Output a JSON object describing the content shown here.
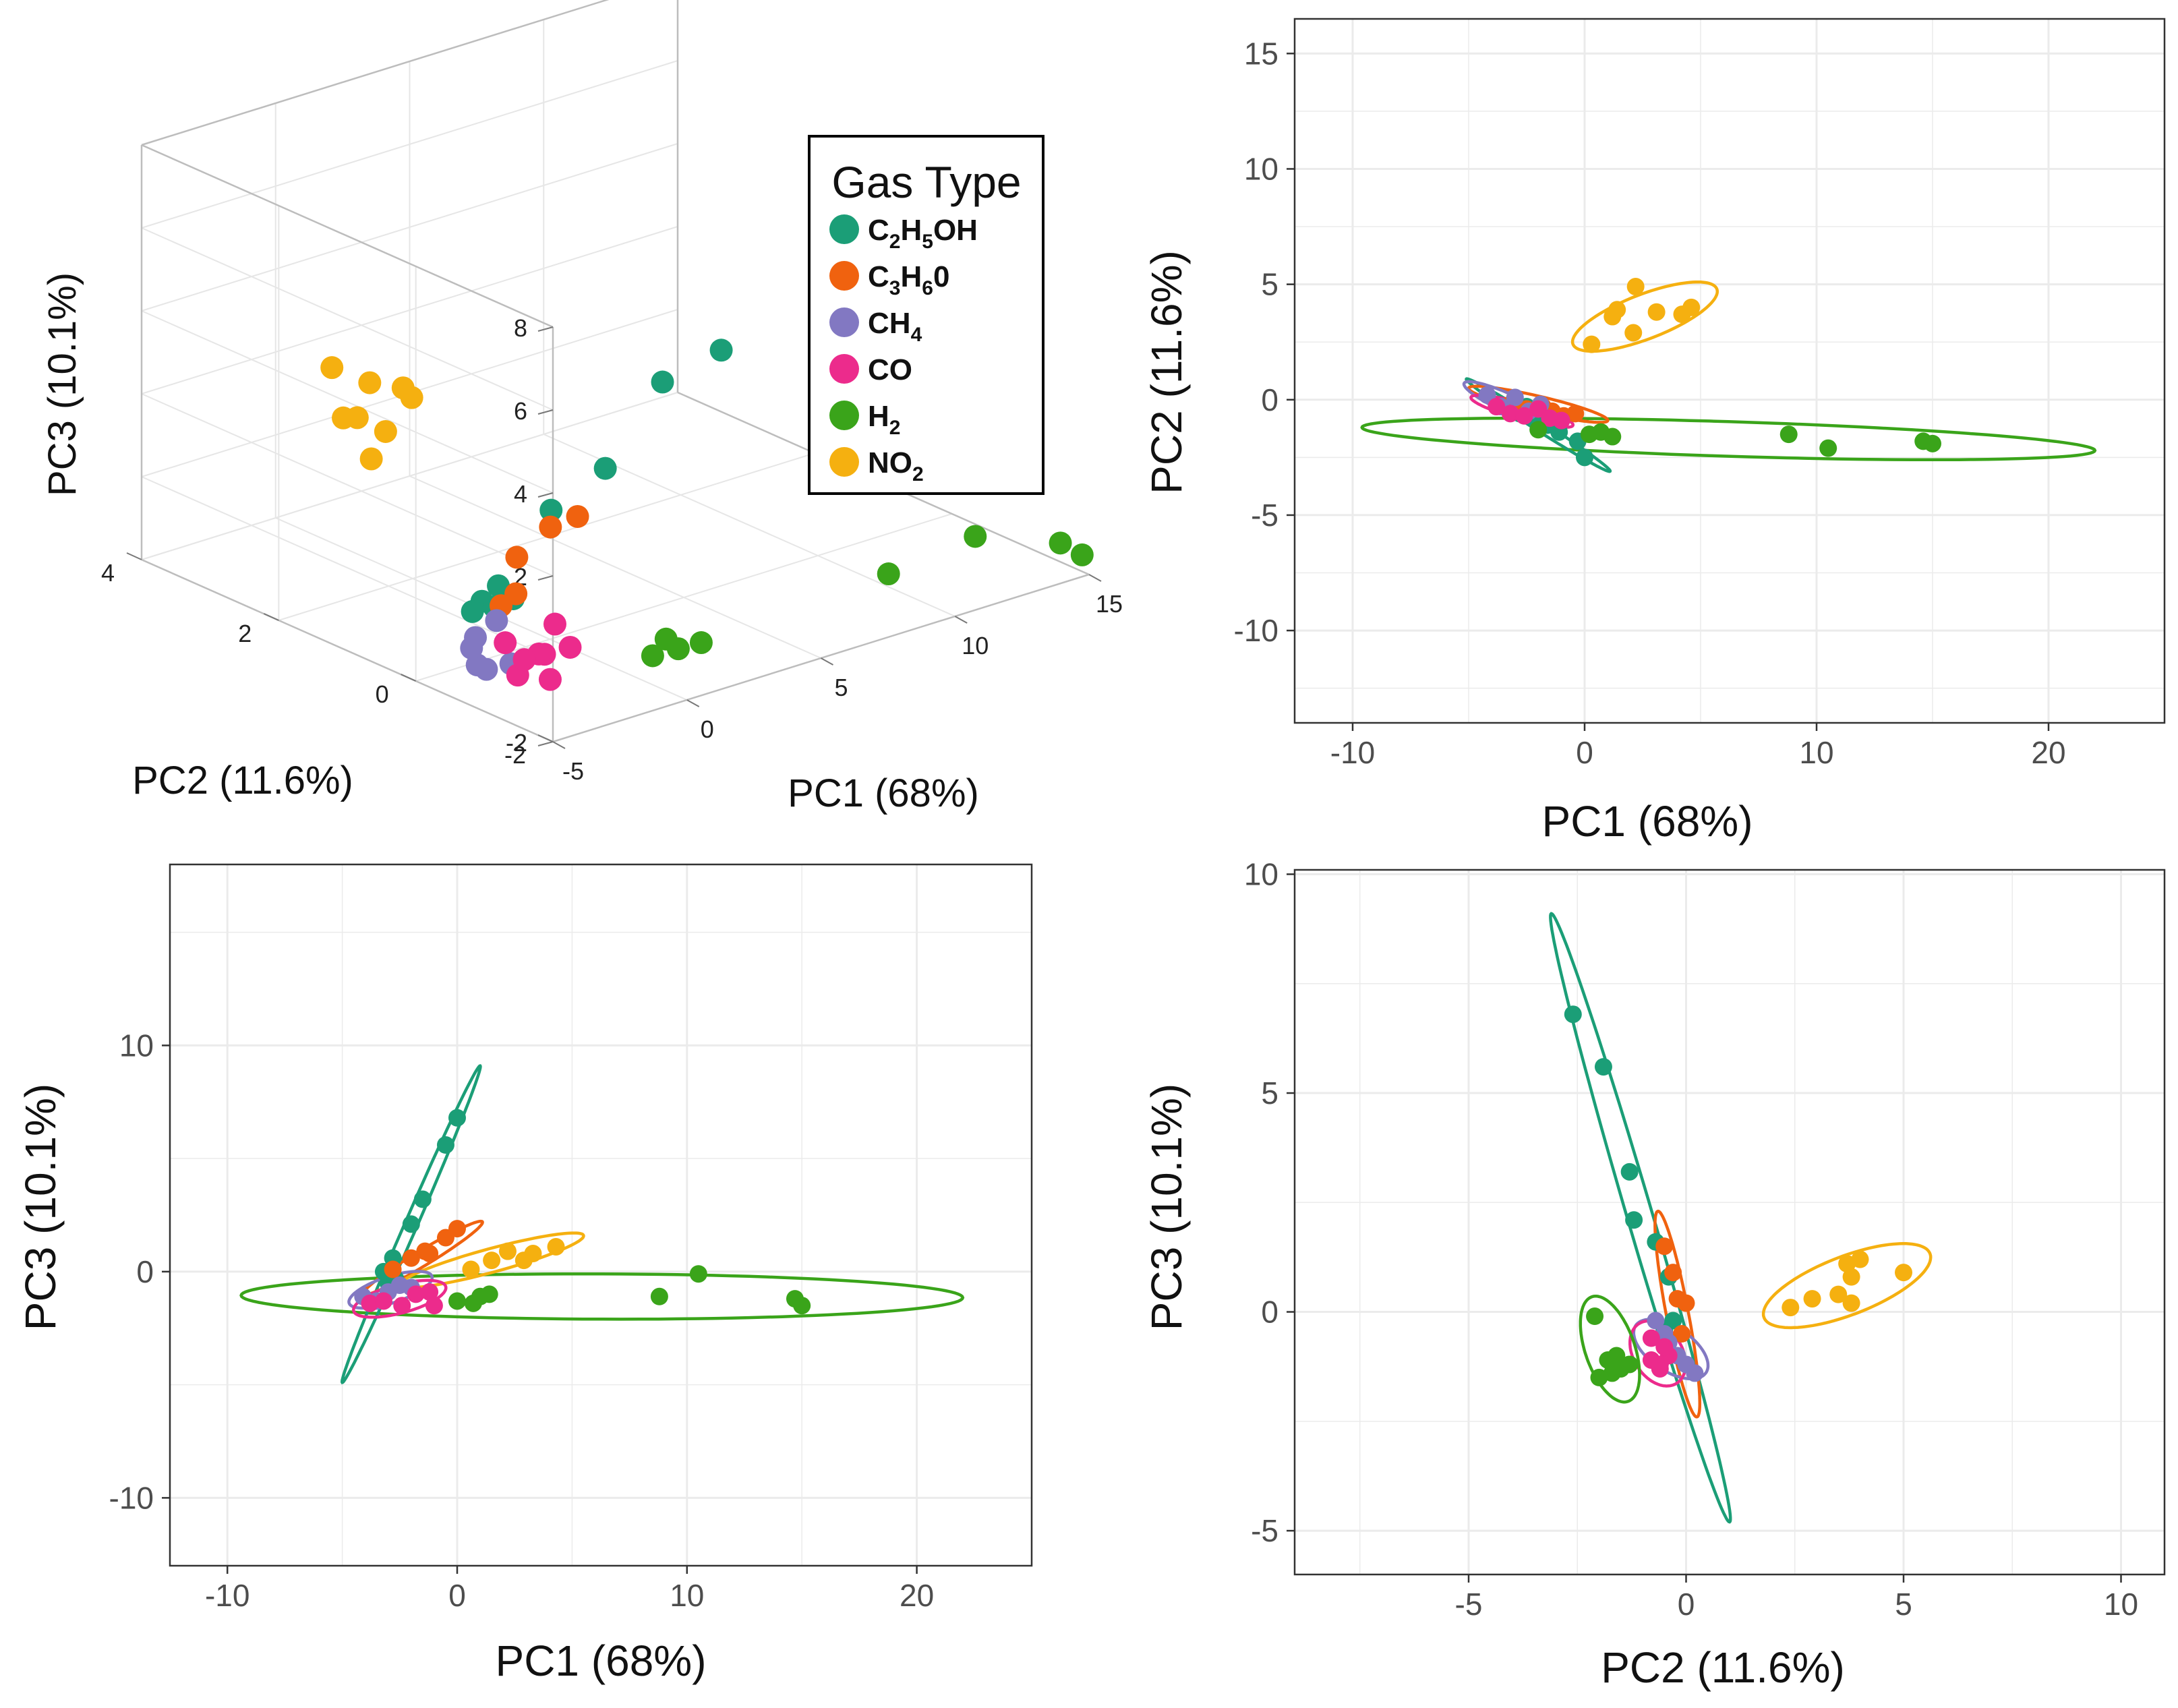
{
  "colors": {
    "C2H5OH": "#1b9e77",
    "C3H6O": "#f0620f",
    "CH4": "#8278c2",
    "CO": "#ec2b8c",
    "H2": "#3aa41a",
    "NO2": "#f5b010",
    "grid": "#ebebeb",
    "axis_text": "#4d4d4d",
    "pane_grid": "#e6e6e6",
    "pane_edge": "#bdbdbd"
  },
  "legend": {
    "title": "Gas Type",
    "items": [
      {
        "key": "C2H5OH",
        "parts": [
          [
            "C",
            ""
          ],
          [
            "2",
            "sub"
          ],
          [
            "H",
            ""
          ],
          [
            "5",
            "sub"
          ],
          [
            "OH",
            ""
          ]
        ]
      },
      {
        "key": "C3H6O",
        "parts": [
          [
            "C",
            ""
          ],
          [
            "3",
            "sub"
          ],
          [
            "H",
            ""
          ],
          [
            "6",
            "sub"
          ],
          [
            "0",
            ""
          ]
        ]
      },
      {
        "key": "CH4",
        "parts": [
          [
            "CH",
            ""
          ],
          [
            "4",
            "sub"
          ]
        ]
      },
      {
        "key": "CO",
        "parts": [
          [
            "CO",
            ""
          ]
        ]
      },
      {
        "key": "H2",
        "parts": [
          [
            "H",
            ""
          ],
          [
            "2",
            "sub"
          ]
        ]
      },
      {
        "key": "NO2",
        "parts": [
          [
            "NO",
            ""
          ],
          [
            "2",
            "sub"
          ]
        ]
      }
    ]
  },
  "chart_data": [
    {
      "type": "scatter",
      "projection": "3d",
      "title": "",
      "xlabel": "PC1 (68%)",
      "ylabel": "PC2 (11.6%)",
      "zlabel": "PC3 (10.1%)",
      "xticks": [
        "-5",
        "0",
        "5",
        "10",
        "15"
      ],
      "yticks": [
        "-2",
        "0",
        "2",
        "4"
      ],
      "zticks": [
        "-2",
        "0",
        "2",
        "4",
        "6",
        "8"
      ],
      "xlim": [
        -5,
        15
      ],
      "ylim": [
        -2,
        4
      ],
      "zlim": [
        -2,
        8
      ],
      "series": [
        {
          "name": "C2H5OH",
          "points": [
            [
              0,
              -2.5,
              6.8
            ],
            [
              -0.4,
              -1.8,
              5.6
            ],
            [
              -1,
              -1.2,
              3.2
            ],
            [
              -2,
              -0.8,
              2.1
            ],
            [
              -3.2,
              -0.5,
              0.3
            ],
            [
              -3.3,
              -0.3,
              -0.2
            ],
            [
              -3.4,
              -0.2,
              -0.5
            ],
            [
              -2.9,
              -0.6,
              0.0
            ],
            [
              -3.1,
              -0.4,
              -0.3
            ]
          ]
        },
        {
          "name": "C3H6O",
          "points": [
            [
              -0.5,
              -0.6,
              1.5
            ],
            [
              -1,
              -0.4,
              1.2
            ],
            [
              -2,
              -0.3,
              0.6
            ],
            [
              -2.8,
              -0.6,
              0.1
            ],
            [
              -3.1,
              -0.5,
              -0.2
            ]
          ]
        },
        {
          "name": "CH4",
          "points": [
            [
              -3.8,
              -0.4,
              -0.9
            ],
            [
              -4.5,
              -0.7,
              -1.2
            ],
            [
              -3.9,
              -0.6,
              -1.5
            ],
            [
              -2.5,
              -0.2,
              -0.9
            ],
            [
              -4.2,
              -0.5,
              -1.0
            ],
            [
              -3.5,
              -0.8,
              -1.3
            ]
          ]
        },
        {
          "name": "CO",
          "points": [
            [
              -3.5,
              -0.9,
              -1.5
            ],
            [
              -3.2,
              -0.6,
              -1.0
            ],
            [
              -2.8,
              -1.1,
              -1.6
            ],
            [
              -2.5,
              -0.9,
              -1.2
            ],
            [
              -2.2,
              -0.7,
              -1.4
            ],
            [
              -1.8,
              -1.0,
              -1.1
            ],
            [
              -1.6,
              -0.7,
              -0.8
            ],
            [
              -3.0,
              -0.8,
              -1.3
            ]
          ]
        },
        {
          "name": "H2",
          "points": [
            [
              0,
              -1.5,
              -1.3
            ],
            [
              0.7,
              -1.6,
              -1.2
            ],
            [
              1.3,
              -1.7,
              -1.1
            ],
            [
              0.5,
              -1.5,
              -1.0
            ],
            [
              8.8,
              -1.5,
              -1.1
            ],
            [
              10.5,
              -2.1,
              -0.1
            ],
            [
              14.7,
              -1.7,
              -1.4
            ],
            [
              15,
              -1.9,
              -1.6
            ]
          ]
        },
        {
          "name": "NO2",
          "points": [
            [
              -0.5,
              2.2,
              1.5
            ],
            [
              0.5,
              2.8,
              0.2
            ],
            [
              1.5,
              3.6,
              0.4
            ],
            [
              2.1,
              4.0,
              1.2
            ],
            [
              3.0,
              3.8,
              0.8
            ],
            [
              3.8,
              3.5,
              0.5
            ],
            [
              4.5,
              3.9,
              0.3
            ],
            [
              1.0,
              3.2,
              0.8
            ]
          ]
        }
      ]
    },
    {
      "type": "scatter",
      "title": "",
      "xlabel": "PC1 (68%)",
      "ylabel": "PC2 (11.6%)",
      "xlim": [
        -12.5,
        25
      ],
      "ylim": [
        -14,
        16.5
      ],
      "xticks": [
        -10,
        0,
        10,
        20
      ],
      "yticks": [
        -10,
        -5,
        0,
        5,
        10,
        15
      ],
      "ellipses": [
        {
          "name": "C2H5OH",
          "points": [
            [
              -5,
              0.9
            ],
            [
              -3.5,
              0.3
            ],
            [
              -2,
              -0.5
            ],
            [
              -0.5,
              -1.5
            ],
            [
              0.5,
              -2.2
            ],
            [
              1,
              -3.1
            ]
          ]
        },
        {
          "name": "C3H6O",
          "points": [
            [
              -4.5,
              0.6
            ],
            [
              -3,
              0.2
            ],
            [
              -1.5,
              -0.2
            ],
            [
              0,
              -0.4
            ],
            [
              1,
              -0.8
            ]
          ]
        },
        {
          "name": "CH4",
          "points": [
            [
              -5,
              0.8
            ],
            [
              -3.5,
              0.4
            ],
            [
              -2,
              -0.2
            ],
            [
              -1,
              -0.6
            ]
          ]
        },
        {
          "name": "CO",
          "points": [
            [
              -5,
              0.3
            ],
            [
              -3.5,
              -0.2
            ],
            [
              -2,
              -0.7
            ],
            [
              -0.5,
              -1.1
            ]
          ]
        },
        {
          "name": "H2",
          "points": [
            [
              -9.5,
              -1.2
            ],
            [
              0,
              -1.4
            ],
            [
              10,
              -1.7
            ],
            [
              22,
              -2.2
            ]
          ]
        },
        {
          "name": "NO2",
          "points": [
            [
              0,
              2.5
            ],
            [
              1.5,
              3.8
            ],
            [
              3.2,
              4.5
            ],
            [
              6,
              4.8
            ],
            [
              1,
              2.1
            ]
          ]
        }
      ],
      "series": [
        {
          "name": "C2H5OH",
          "points": [
            [
              -2.8,
              -0.6
            ],
            [
              -2.2,
              -0.8
            ],
            [
              -1.6,
              -1.1
            ],
            [
              -1.1,
              -1.4
            ],
            [
              -0.3,
              -1.8
            ],
            [
              0,
              -2.5
            ],
            [
              -3.2,
              -0.4
            ],
            [
              -2.5,
              -0.3
            ]
          ]
        },
        {
          "name": "C3H6O",
          "points": [
            [
              -3.2,
              -0.2
            ],
            [
              -2.5,
              -0.4
            ],
            [
              -1.8,
              -0.3
            ],
            [
              -1.4,
              -0.5
            ],
            [
              -0.9,
              -0.7
            ],
            [
              -0.4,
              -0.6
            ]
          ]
        },
        {
          "name": "CH4",
          "points": [
            [
              -4.2,
              0.2
            ],
            [
              -3.6,
              -0.3
            ],
            [
              -3,
              0.1
            ],
            [
              -2.4,
              -0.5
            ],
            [
              -1.9,
              -0.2
            ]
          ]
        },
        {
          "name": "CO",
          "points": [
            [
              -3.8,
              -0.3
            ],
            [
              -3.2,
              -0.6
            ],
            [
              -2.6,
              -0.7
            ],
            [
              -2,
              -0.4
            ],
            [
              -1.5,
              -0.8
            ],
            [
              -1,
              -0.9
            ]
          ]
        },
        {
          "name": "H2",
          "points": [
            [
              -2,
              -1.3
            ],
            [
              0.2,
              -1.5
            ],
            [
              0.7,
              -1.4
            ],
            [
              1.2,
              -1.6
            ],
            [
              8.8,
              -1.5
            ],
            [
              10.5,
              -2.1
            ],
            [
              14.6,
              -1.8
            ],
            [
              15,
              -1.9
            ]
          ]
        },
        {
          "name": "NO2",
          "points": [
            [
              0.3,
              2.4
            ],
            [
              1.2,
              3.6
            ],
            [
              1.4,
              3.9
            ],
            [
              2.1,
              2.9
            ],
            [
              2.2,
              4.9
            ],
            [
              3.1,
              3.8
            ],
            [
              4.2,
              3.7
            ],
            [
              4.6,
              4.0
            ]
          ]
        }
      ]
    },
    {
      "type": "scatter",
      "title": "",
      "xlabel": "PC1 (68%)",
      "ylabel": "PC3 (10.1%)",
      "xlim": [
        -12.5,
        25
      ],
      "ylim": [
        -13,
        18
      ],
      "xticks": [
        -10,
        0,
        10,
        20
      ],
      "yticks": [
        -10,
        0,
        10
      ],
      "series": [
        {
          "name": "C2H5OH",
          "points": [
            [
              -3.2,
              0.0
            ],
            [
              -2.8,
              0.6
            ],
            [
              -2,
              2.1
            ],
            [
              -1.5,
              3.2
            ],
            [
              -0.5,
              5.6
            ],
            [
              0,
              6.8
            ],
            [
              -3,
              -0.5
            ],
            [
              -2.7,
              -0.3
            ]
          ]
        },
        {
          "name": "C3H6O",
          "points": [
            [
              -2.8,
              0.1
            ],
            [
              -2,
              0.6
            ],
            [
              -1.4,
              0.9
            ],
            [
              -0.5,
              1.5
            ],
            [
              0,
              1.9
            ],
            [
              -1.2,
              0.8
            ]
          ]
        },
        {
          "name": "CH4",
          "points": [
            [
              -4.1,
              -1.1
            ],
            [
              -3.5,
              -1.3
            ],
            [
              -3,
              -0.9
            ],
            [
              -2.5,
              -0.6
            ],
            [
              -2,
              -0.7
            ]
          ]
        },
        {
          "name": "CO",
          "points": [
            [
              -3.8,
              -1.4
            ],
            [
              -3.2,
              -1.3
            ],
            [
              -2.4,
              -1.5
            ],
            [
              -1.8,
              -1.0
            ],
            [
              -1.2,
              -0.9
            ],
            [
              -1,
              -1.5
            ]
          ]
        },
        {
          "name": "H2",
          "points": [
            [
              0,
              -1.3
            ],
            [
              0.7,
              -1.4
            ],
            [
              1,
              -1.1
            ],
            [
              1.4,
              -1.0
            ],
            [
              8.8,
              -1.1
            ],
            [
              10.5,
              -0.1
            ],
            [
              14.7,
              -1.2
            ],
            [
              15,
              -1.5
            ]
          ]
        },
        {
          "name": "NO2",
          "points": [
            [
              0.6,
              0.1
            ],
            [
              1.5,
              0.5
            ],
            [
              2.2,
              0.9
            ],
            [
              3.3,
              0.8
            ],
            [
              4.3,
              1.1
            ],
            [
              2.9,
              0.5
            ]
          ]
        }
      ]
    },
    {
      "type": "scatter",
      "title": "",
      "xlabel": "PC2 (11.6%)",
      "ylabel": "PC3 (10.1%)",
      "xlim": [
        -9,
        11
      ],
      "ylim": [
        -6,
        10.1
      ],
      "xticks": [
        -5,
        0,
        5,
        10
      ],
      "yticks": [
        -5,
        0,
        5,
        10
      ],
      "series": [
        {
          "name": "C2H5OH",
          "points": [
            [
              -2.6,
              6.8
            ],
            [
              -1.9,
              5.6
            ],
            [
              -1.3,
              3.2
            ],
            [
              -1.2,
              2.1
            ],
            [
              -0.7,
              1.6
            ],
            [
              -0.4,
              0.8
            ],
            [
              -0.3,
              -0.2
            ],
            [
              -0.5,
              -0.4
            ]
          ]
        },
        {
          "name": "C3H6O",
          "points": [
            [
              -0.5,
              1.5
            ],
            [
              -0.3,
              0.9
            ],
            [
              -0.2,
              0.3
            ],
            [
              0,
              0.2
            ],
            [
              -0.1,
              -0.5
            ]
          ]
        },
        {
          "name": "CH4",
          "points": [
            [
              -0.7,
              -0.2
            ],
            [
              -0.5,
              -0.5
            ],
            [
              -0.2,
              -1.0
            ],
            [
              0,
              -1.2
            ],
            [
              0.2,
              -1.4
            ],
            [
              -0.4,
              -0.7
            ]
          ]
        },
        {
          "name": "CO",
          "points": [
            [
              -0.8,
              -1.1
            ],
            [
              -0.6,
              -1.3
            ],
            [
              -0.4,
              -1.0
            ],
            [
              -0.8,
              -0.6
            ],
            [
              -0.5,
              -0.8
            ],
            [
              -0.6,
              -1.2
            ]
          ]
        },
        {
          "name": "H2",
          "points": [
            [
              -2.1,
              -0.1
            ],
            [
              -1.8,
              -1.1
            ],
            [
              -1.6,
              -1.0
            ],
            [
              -1.5,
              -1.3
            ],
            [
              -1.3,
              -1.2
            ],
            [
              -2,
              -1.5
            ],
            [
              -1.7,
              -1.4
            ]
          ]
        },
        {
          "name": "NO2",
          "points": [
            [
              2.4,
              0.1
            ],
            [
              2.9,
              0.3
            ],
            [
              3.5,
              0.4
            ],
            [
              3.8,
              0.8
            ],
            [
              4.0,
              1.2
            ],
            [
              3.7,
              1.1
            ],
            [
              3.8,
              0.2
            ],
            [
              5.0,
              0.9
            ]
          ]
        }
      ]
    }
  ]
}
